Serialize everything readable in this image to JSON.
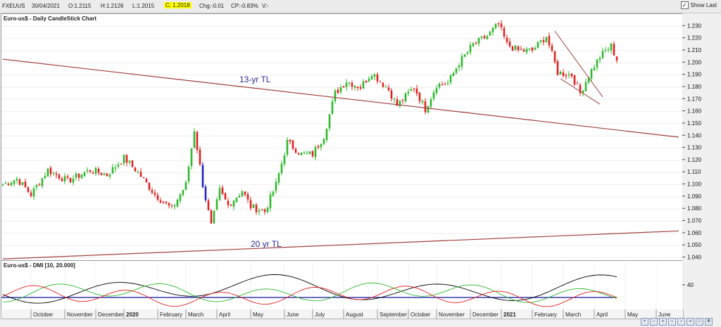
{
  "topbar": {
    "symbol": "FXEUUS",
    "date": "30/04/2021",
    "open": "O:1.2115",
    "high": "H:1.2126",
    "low": "L:1.2015",
    "close": "C: 1.2018",
    "change": "Chg:-0.01",
    "change_pct": "CP:-0.83%",
    "volume": "V:-",
    "show_last_label": "Show Last",
    "show_last_checked": true
  },
  "colors": {
    "up": "#2eb82e",
    "down": "#e02020",
    "highlight_candle": "#2020c0",
    "trendline": "#a04040",
    "annotation": "#2a2a9a"
  },
  "chart_data": [
    {
      "type": "candlestick",
      "title": "Euro-us$ - Daily CandleStick Chart",
      "ylim": [
        1.038,
        1.24
      ],
      "yticks": [
        "1.040",
        "1.050",
        "1.060",
        "1.070",
        "1.080",
        "1.090",
        "1.100",
        "1.110",
        "1.120",
        "1.130",
        "1.140",
        "1.150",
        "1.160",
        "1.170",
        "1.180",
        "1.190",
        "1.200",
        "1.210",
        "1.220",
        "1.230"
      ],
      "x_labels": [
        "October",
        "November",
        "December",
        "2020",
        "February",
        "March",
        "April",
        "May",
        "June",
        "July",
        "August",
        "September",
        "October",
        "November",
        "December",
        "2021",
        "February",
        "March",
        "April",
        "May",
        "June"
      ],
      "series_waypoints": [
        {
          "t": 0,
          "price": 1.1
        },
        {
          "t": 5,
          "price": 1.105
        },
        {
          "t": 10,
          "price": 1.092
        },
        {
          "t": 16,
          "price": 1.112
        },
        {
          "t": 23,
          "price": 1.103
        },
        {
          "t": 31,
          "price": 1.112
        },
        {
          "t": 37,
          "price": 1.108
        },
        {
          "t": 43,
          "price": 1.122
        },
        {
          "t": 48,
          "price": 1.11
        },
        {
          "t": 54,
          "price": 1.092
        },
        {
          "t": 60,
          "price": 1.08
        },
        {
          "t": 65,
          "price": 1.1
        },
        {
          "t": 68,
          "price": 1.145
        },
        {
          "t": 71,
          "price": 1.1
        },
        {
          "t": 74,
          "price": 1.066
        },
        {
          "t": 77,
          "price": 1.095
        },
        {
          "t": 80,
          "price": 1.083
        },
        {
          "t": 85,
          "price": 1.095
        },
        {
          "t": 88,
          "price": 1.082
        },
        {
          "t": 93,
          "price": 1.078
        },
        {
          "t": 97,
          "price": 1.1
        },
        {
          "t": 101,
          "price": 1.135
        },
        {
          "t": 106,
          "price": 1.125
        },
        {
          "t": 110,
          "price": 1.125
        },
        {
          "t": 114,
          "price": 1.14
        },
        {
          "t": 118,
          "price": 1.175
        },
        {
          "t": 122,
          "price": 1.185
        },
        {
          "t": 127,
          "price": 1.18
        },
        {
          "t": 131,
          "price": 1.192
        },
        {
          "t": 137,
          "price": 1.178
        },
        {
          "t": 140,
          "price": 1.165
        },
        {
          "t": 146,
          "price": 1.18
        },
        {
          "t": 150,
          "price": 1.162
        },
        {
          "t": 154,
          "price": 1.182
        },
        {
          "t": 158,
          "price": 1.183
        },
        {
          "t": 162,
          "price": 1.2
        },
        {
          "t": 167,
          "price": 1.215
        },
        {
          "t": 172,
          "price": 1.222
        },
        {
          "t": 176,
          "price": 1.232
        },
        {
          "t": 179,
          "price": 1.215
        },
        {
          "t": 183,
          "price": 1.21
        },
        {
          "t": 188,
          "price": 1.21
        },
        {
          "t": 193,
          "price": 1.222
        },
        {
          "t": 197,
          "price": 1.192
        },
        {
          "t": 202,
          "price": 1.19
        },
        {
          "t": 205,
          "price": 1.175
        },
        {
          "t": 208,
          "price": 1.19
        },
        {
          "t": 212,
          "price": 1.205
        },
        {
          "t": 216,
          "price": 1.214
        },
        {
          "t": 218,
          "price": 1.202
        }
      ],
      "lines": [
        {
          "name": "13-yr TL",
          "from": {
            "t": 0,
            "price": 1.203
          },
          "to": {
            "t": 240,
            "price": 1.139
          }
        },
        {
          "name": "20 yr TL",
          "from": {
            "t": 0,
            "price": 1.039
          },
          "to": {
            "t": 240,
            "price": 1.062
          }
        },
        {
          "name": "channel-upper",
          "from": {
            "t": 196,
            "price": 1.226
          },
          "to": {
            "t": 213,
            "price": 1.172
          }
        },
        {
          "name": "channel-lower",
          "from": {
            "t": 198,
            "price": 1.187
          },
          "to": {
            "t": 212,
            "price": 1.166
          }
        }
      ],
      "annotations": [
        {
          "text": "13-yr TL",
          "t": 84,
          "price": 1.184
        },
        {
          "text": "20 yr TL",
          "t": 88,
          "price": 1.049
        }
      ]
    },
    {
      "type": "line",
      "title": "Euro-us$ - DMI [10, 20.000]",
      "yticks": [
        "40"
      ],
      "series": [
        {
          "name": "ADX",
          "color": "#000000"
        },
        {
          "name": "+DI",
          "color": "#2eb82e"
        },
        {
          "name": "-DI",
          "color": "#e02020"
        },
        {
          "name": "Threshold",
          "color": "#1010a0"
        }
      ]
    }
  ]
}
